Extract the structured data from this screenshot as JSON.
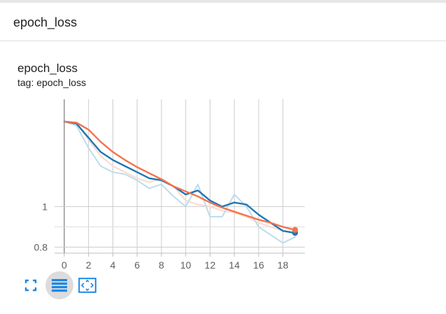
{
  "section": {
    "title": "epoch_loss"
  },
  "card": {
    "title": "epoch_loss",
    "tag": "tag: epoch_loss"
  },
  "toolbar": {
    "buttons": [
      {
        "icon": "fullscreen-icon",
        "active": false
      },
      {
        "icon": "toggle-log-scale-icon",
        "active": true
      },
      {
        "icon": "fit-domain-icon",
        "active": false
      }
    ]
  },
  "colors": {
    "smoothed_orange": "#f4734c",
    "smoothed_blue": "#1f77b4",
    "raw_orange": "#fcd9cd",
    "raw_blue": "#bcdcec",
    "grid": "#cccccc",
    "icon_blue": "#1e88e5"
  },
  "chart_data": {
    "type": "line",
    "x_ticks": [
      0,
      2,
      4,
      6,
      8,
      10,
      12,
      14,
      16,
      18
    ],
    "x_tick_labels": [
      "0",
      "2",
      "4",
      "6",
      "8",
      "10",
      "12",
      "14",
      "16",
      "18"
    ],
    "y_ticks": [
      0.8,
      1
    ],
    "y_tick_labels": [
      "0.8",
      "1"
    ],
    "xlim": [
      -0.8,
      19.8
    ],
    "ylim": [
      0.77,
      1.53
    ],
    "grid": true,
    "series": [
      {
        "style": "raw",
        "color": "#fcd9cd",
        "x": [
          0,
          1,
          2,
          3,
          4,
          5,
          6,
          7,
          8,
          9,
          10,
          11,
          12,
          13,
          14,
          15,
          16,
          17,
          18,
          19
        ],
        "y": [
          1.42,
          1.41,
          1.33,
          1.25,
          1.2,
          1.17,
          1.14,
          1.12,
          1.14,
          1.1,
          1.03,
          1.01,
          1.0,
          0.98,
          0.97,
          0.95,
          0.92,
          0.9,
          0.88,
          0.87
        ]
      },
      {
        "style": "raw",
        "color": "#bcdcec",
        "x": [
          0,
          1,
          2,
          3,
          4,
          5,
          6,
          7,
          8,
          9,
          10,
          11,
          12,
          13,
          14,
          15,
          16,
          17,
          18,
          19
        ],
        "y": [
          1.42,
          1.4,
          1.29,
          1.2,
          1.17,
          1.16,
          1.13,
          1.09,
          1.11,
          1.05,
          1.0,
          1.11,
          0.95,
          0.95,
          1.06,
          1.0,
          0.9,
          0.86,
          0.82,
          0.85
        ]
      },
      {
        "style": "smoothed",
        "color": "#1f77b4",
        "x": [
          0,
          1,
          2,
          3,
          4,
          5,
          6,
          7,
          8,
          9,
          10,
          11,
          12,
          13,
          14,
          15,
          16,
          17,
          18,
          19
        ],
        "y": [
          1.42,
          1.41,
          1.34,
          1.27,
          1.23,
          1.2,
          1.17,
          1.14,
          1.13,
          1.1,
          1.06,
          1.08,
          1.03,
          1.0,
          1.02,
          1.01,
          0.96,
          0.92,
          0.88,
          0.87
        ]
      },
      {
        "style": "smoothed",
        "color": "#f4734c",
        "x": [
          0,
          1,
          2,
          3,
          4,
          5,
          6,
          7,
          8,
          9,
          10,
          11,
          12,
          13,
          14,
          15,
          16,
          17,
          18,
          19
        ],
        "y": [
          1.42,
          1.415,
          1.38,
          1.32,
          1.27,
          1.23,
          1.195,
          1.165,
          1.135,
          1.1,
          1.075,
          1.05,
          1.02,
          0.995,
          0.975,
          0.955,
          0.935,
          0.92,
          0.9,
          0.885
        ]
      }
    ]
  }
}
